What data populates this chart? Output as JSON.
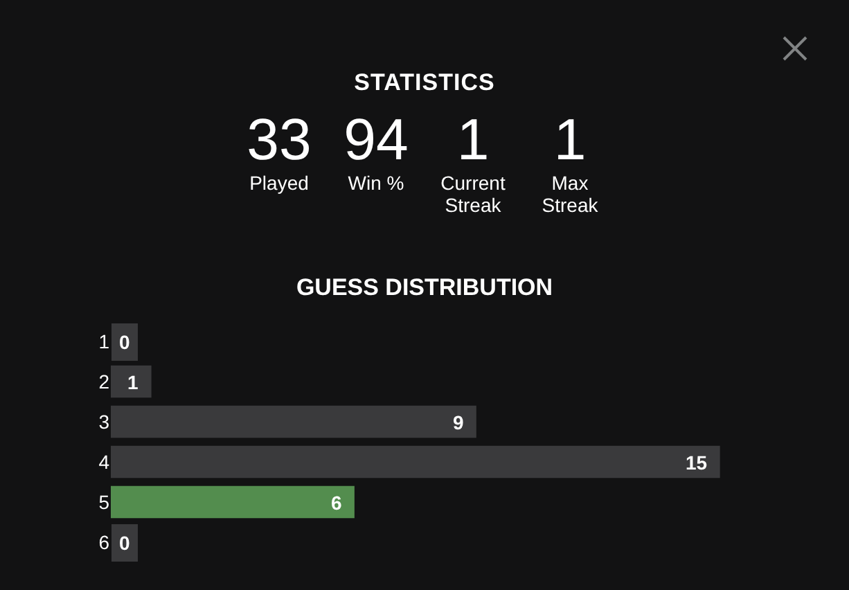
{
  "chart_data": [
    {
      "type": "other",
      "title": "STATISTICS",
      "annotations": [
        "33",
        "Played",
        "94",
        "Win %",
        "1",
        "Current Streak",
        "1",
        "Max Streak"
      ]
    },
    {
      "type": "bar",
      "orientation": "horizontal",
      "title": "GUESS DISTRIBUTION",
      "categories": [
        "1",
        "2",
        "3",
        "4",
        "5",
        "6"
      ],
      "values": [
        0,
        1,
        9,
        15,
        6,
        0
      ],
      "colors": [
        "#3a3a3c",
        "#3a3a3c",
        "#3a3a3c",
        "#3a3a3c",
        "#538d4e",
        "#3a3a3c"
      ],
      "data_labels": true
    }
  ]
}
